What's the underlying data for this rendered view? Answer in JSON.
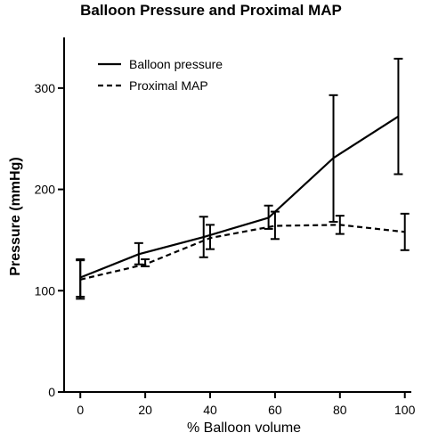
{
  "chart_data": {
    "type": "line",
    "title": "Balloon Pressure and Proximal MAP",
    "xlabel": "% Balloon volume",
    "ylabel": "Pressure (mmHg)",
    "xlim": [
      -5,
      102
    ],
    "ylim": [
      0,
      350
    ],
    "x_ticks": [
      0,
      20,
      40,
      60,
      80,
      100
    ],
    "y_ticks": [
      0,
      100,
      200,
      300
    ],
    "grid": false,
    "legend_position": "top-left",
    "series": [
      {
        "name": "Balloon pressure",
        "style": "solid",
        "color": "#000000",
        "x": [
          0,
          18,
          38,
          58,
          78,
          98
        ],
        "y": [
          113,
          136,
          153,
          172,
          231,
          272
        ],
        "err_low": [
          94,
          126,
          133,
          161,
          168,
          215
        ],
        "err_high": [
          130,
          147,
          173,
          184,
          293,
          329
        ]
      },
      {
        "name": "Proximal MAP",
        "style": "dashed",
        "color": "#000000",
        "x": [
          0,
          20,
          40,
          60,
          80,
          100
        ],
        "y": [
          111,
          126,
          152,
          164,
          165,
          158
        ],
        "err_low": [
          92,
          124,
          141,
          151,
          156,
          140
        ],
        "err_high": [
          131,
          131,
          165,
          178,
          174,
          176
        ]
      }
    ]
  }
}
